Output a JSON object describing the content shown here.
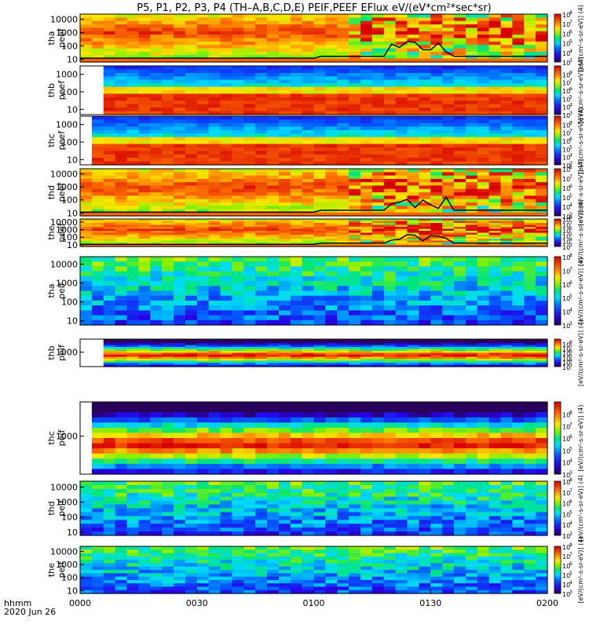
{
  "title": "P5, P1, P2, P3, P4 (TH–A,B,C,D,E) PEIF,PEEF EFlux eV/(eV*cm²*sec*sr)",
  "x_axis": {
    "tick_labels": [
      "0000",
      "0030",
      "0100",
      "0130",
      "0200"
    ],
    "left_labels": [
      "hhmm",
      "2020 Jun 26"
    ]
  },
  "colorbar": {
    "tick_exponents": [
      3,
      4,
      5,
      6,
      7,
      8
    ],
    "base": "10",
    "label": "[eV/(cm²-s-sr-eV)] (4)"
  },
  "chart_data": {
    "type": "heatmap",
    "x_range_hhmm": [
      "0000",
      "0200"
    ],
    "panels": [
      {
        "label": [
          "tha",
          "peef"
        ],
        "y_ticks": [
          "10000",
          "1000",
          "100",
          "10"
        ],
        "yscale": "log",
        "ylim": [
          6,
          25000
        ],
        "clim_exp": [
          3,
          8
        ],
        "scpot": true
      },
      {
        "label": [
          "thb",
          "peef"
        ],
        "y_ticks": [
          "1000",
          "100",
          "10"
        ],
        "yscale": "log",
        "ylim": [
          5,
          3000
        ],
        "clim_exp": [
          3,
          9
        ],
        "scpot": false
      },
      {
        "label": [
          "thc",
          "peef"
        ],
        "y_ticks": [
          "1000",
          "100",
          "10"
        ],
        "yscale": "log",
        "ylim": [
          5,
          3000
        ],
        "clim_exp": [
          3,
          9
        ],
        "scpot": false
      },
      {
        "label": [
          "thd",
          "peef"
        ],
        "y_ticks": [
          "10000",
          "1000",
          "100",
          "10"
        ],
        "yscale": "log",
        "ylim": [
          6,
          25000
        ],
        "clim_exp": [
          3,
          8
        ],
        "scpot": true
      },
      {
        "label": [
          "the",
          "peef"
        ],
        "y_ticks": [
          "10000",
          "1000",
          "100",
          "10"
        ],
        "yscale": "log",
        "ylim": [
          6,
          25000
        ],
        "clim_exp": [
          3,
          8
        ],
        "scpot": true
      },
      {
        "label": [
          "tha",
          "peif"
        ],
        "y_ticks": [
          "10000",
          "1000",
          "100",
          "10"
        ],
        "yscale": "log",
        "ylim": [
          6,
          25000
        ],
        "clim_exp": [
          3,
          8
        ],
        "scpot": false
      },
      {
        "label": [
          "thb",
          "peif"
        ],
        "y_ticks": [
          "1000"
        ],
        "yscale": "log",
        "ylim": [
          100,
          8000
        ],
        "clim_exp": [
          3,
          9
        ],
        "scpot": false
      },
      {
        "label": [
          "thc",
          "peif"
        ],
        "y_ticks": [
          "1000"
        ],
        "yscale": "log",
        "ylim": [
          100,
          8000
        ],
        "clim_exp": [
          3,
          9
        ],
        "scpot": false
      },
      {
        "label": [
          "thd",
          "peif"
        ],
        "y_ticks": [
          "10000",
          "1000",
          "100",
          "10"
        ],
        "yscale": "log",
        "ylim": [
          6,
          25000
        ],
        "clim_exp": [
          3,
          8
        ],
        "scpot": false
      },
      {
        "label": [
          "the",
          "peif"
        ],
        "y_ticks": [
          "10000",
          "1000",
          "100",
          "10"
        ],
        "yscale": "log",
        "ylim": [
          6,
          25000
        ],
        "clim_exp": [
          3,
          8
        ],
        "scpot": false
      }
    ]
  }
}
